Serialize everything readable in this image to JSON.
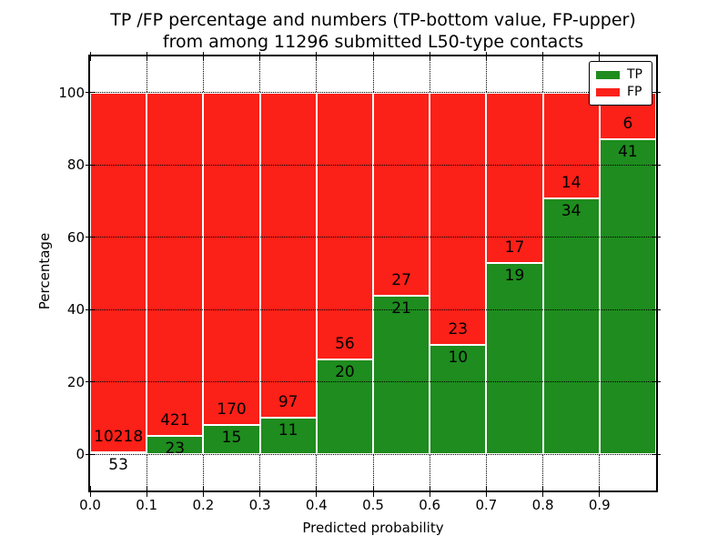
{
  "title": {
    "line1": "TP /FP percentage and numbers (TP-bottom value, FP-upper)",
    "line2": "from among 11296 submitted L50-type contacts"
  },
  "colors": {
    "tp_green": "#1e8c1e",
    "fp_red": "#fb2018",
    "grid": "#000000",
    "background": "#ffffff"
  },
  "legend": [
    {
      "label": "TP",
      "color": "#1e8c1e"
    },
    {
      "label": "FP",
      "color": "#fb2018"
    }
  ],
  "chart_data": {
    "type": "bar",
    "stacked": true,
    "title": "TP /FP percentage and numbers (TP-bottom value, FP-upper) from among 11296 submitted L50-type contacts",
    "total_contacts": 11296,
    "xlabel": "Predicted probability",
    "ylabel": "Percentage",
    "xlim": [
      0.0,
      1.0
    ],
    "ylim": [
      -10,
      110
    ],
    "xticks": [
      "0.0",
      "0.1",
      "0.2",
      "0.3",
      "0.4",
      "0.5",
      "0.6",
      "0.7",
      "0.8",
      "0.9"
    ],
    "yticks": [
      0,
      20,
      40,
      60,
      80,
      100
    ],
    "grid": "dotted-both-axes",
    "legend_position": "upper-right",
    "bins": [
      {
        "range": [
          0.0,
          0.1
        ],
        "tp": 53,
        "fp": 10218,
        "tp_pct": 0.52
      },
      {
        "range": [
          0.1,
          0.2
        ],
        "tp": 23,
        "fp": 421,
        "tp_pct": 5.18
      },
      {
        "range": [
          0.2,
          0.3
        ],
        "tp": 15,
        "fp": 170,
        "tp_pct": 8.11
      },
      {
        "range": [
          0.3,
          0.4
        ],
        "tp": 11,
        "fp": 97,
        "tp_pct": 10.19
      },
      {
        "range": [
          0.4,
          0.5
        ],
        "tp": 20,
        "fp": 56,
        "tp_pct": 26.32
      },
      {
        "range": [
          0.5,
          0.6
        ],
        "tp": 21,
        "fp": 27,
        "tp_pct": 43.75
      },
      {
        "range": [
          0.6,
          0.7
        ],
        "tp": 10,
        "fp": 23,
        "tp_pct": 30.3
      },
      {
        "range": [
          0.7,
          0.8
        ],
        "tp": 19,
        "fp": 17,
        "tp_pct": 52.78
      },
      {
        "range": [
          0.8,
          0.9
        ],
        "tp": 34,
        "fp": 14,
        "tp_pct": 70.83
      },
      {
        "range": [
          0.9,
          1.0
        ],
        "tp": 41,
        "fp": 6,
        "tp_pct": 87.23
      }
    ],
    "series": [
      {
        "name": "TP",
        "color": "#1e8c1e",
        "values_pct": [
          0.52,
          5.18,
          8.11,
          10.19,
          26.32,
          43.75,
          30.3,
          52.78,
          70.83,
          87.23
        ]
      },
      {
        "name": "FP",
        "color": "#fb2018",
        "values_pct": [
          99.48,
          94.82,
          91.89,
          89.81,
          73.68,
          56.25,
          69.7,
          47.22,
          29.17,
          12.77
        ]
      }
    ]
  }
}
